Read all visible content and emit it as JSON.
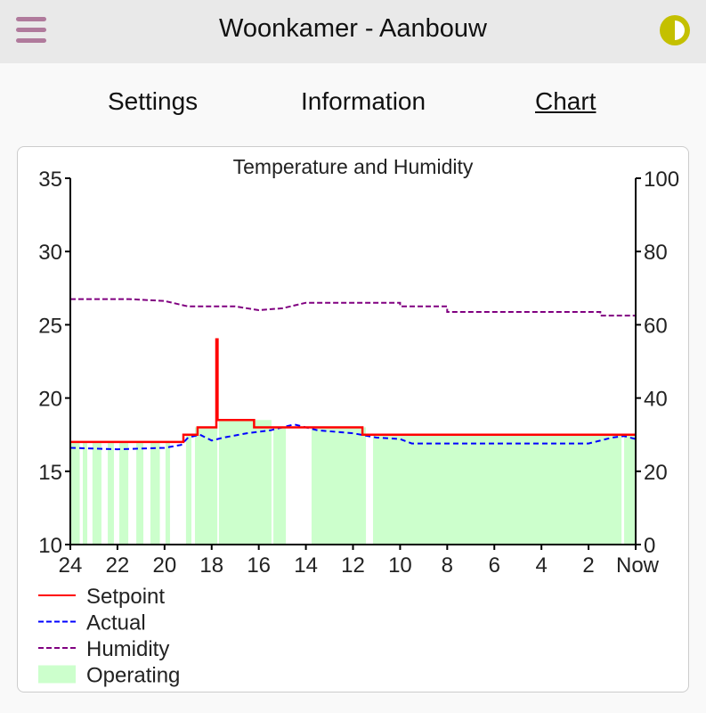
{
  "header": {
    "title": "Woonkamer - Aanbouw",
    "menu_icon": "hamburger-menu-icon",
    "theme_icon": "contrast-half-circle-icon",
    "menu_color": "#b07a9c",
    "theme_color": "#c4c000"
  },
  "tabs": [
    {
      "label": "Settings"
    },
    {
      "label": "Information"
    },
    {
      "label": "Chart",
      "active": true
    }
  ],
  "chart_data": {
    "type": "line",
    "title": "Temperature and Humidity",
    "x_unit": "hours ago",
    "x_ticks": [
      "24",
      "22",
      "20",
      "18",
      "16",
      "14",
      "12",
      "10",
      "8",
      "6",
      "4",
      "2",
      "Now"
    ],
    "x_tick_values": [
      24,
      22,
      20,
      18,
      16,
      14,
      12,
      10,
      8,
      6,
      4,
      2,
      0
    ],
    "xlim": [
      24,
      0
    ],
    "ylim_left": [
      10,
      35
    ],
    "y_ticks_left": [
      "10",
      "15",
      "20",
      "25",
      "30",
      "35"
    ],
    "ylim_right": [
      0,
      100
    ],
    "y_ticks_right": [
      "0",
      "20",
      "40",
      "60",
      "80",
      "100"
    ],
    "grid": false,
    "legend_placement": "bottom-left",
    "colors": {
      "Setpoint": "#ff0000",
      "Actual": "#0000ff",
      "Humidity": "#800080",
      "Operating": "#ccffcc"
    },
    "legend": [
      "Setpoint",
      "Actual",
      "Humidity",
      "Operating"
    ],
    "series": [
      {
        "name": "Setpoint",
        "axis": "left",
        "style": "solid",
        "points": [
          [
            24,
            17
          ],
          [
            19.2,
            17
          ],
          [
            19.2,
            17.5
          ],
          [
            18.6,
            17.5
          ],
          [
            18.6,
            18
          ],
          [
            17.8,
            18
          ],
          [
            17.8,
            24
          ],
          [
            17.75,
            24
          ],
          [
            17.75,
            18.5
          ],
          [
            16.2,
            18.5
          ],
          [
            16.2,
            18
          ],
          [
            11.6,
            18
          ],
          [
            11.6,
            17.5
          ],
          [
            0,
            17.5
          ]
        ]
      },
      {
        "name": "Actual",
        "axis": "left",
        "style": "dashed",
        "points": [
          [
            24,
            16.6
          ],
          [
            22,
            16.5
          ],
          [
            20,
            16.6
          ],
          [
            19.3,
            16.8
          ],
          [
            19,
            17.3
          ],
          [
            18.5,
            17.5
          ],
          [
            18,
            17.1
          ],
          [
            17.5,
            17.3
          ],
          [
            16.5,
            17.6
          ],
          [
            15.5,
            17.8
          ],
          [
            14.5,
            18.2
          ],
          [
            13.5,
            17.8
          ],
          [
            12,
            17.6
          ],
          [
            11,
            17.3
          ],
          [
            10,
            17.2
          ],
          [
            9.5,
            16.9
          ],
          [
            2,
            16.9
          ],
          [
            1,
            17.3
          ],
          [
            0.5,
            17.4
          ],
          [
            0,
            17.2
          ]
        ]
      },
      {
        "name": "Humidity",
        "axis": "right",
        "style": "dashed",
        "points": [
          [
            24,
            67
          ],
          [
            21.5,
            67
          ],
          [
            20,
            66.5
          ],
          [
            19,
            65
          ],
          [
            17,
            65
          ],
          [
            16,
            64
          ],
          [
            15,
            64.5
          ],
          [
            14,
            66
          ],
          [
            10,
            66
          ],
          [
            10,
            65
          ],
          [
            8,
            65
          ],
          [
            8,
            63.5
          ],
          [
            1.5,
            63.5
          ],
          [
            1.5,
            62.5
          ],
          [
            0,
            62.5
          ]
        ]
      },
      {
        "name": "Operating",
        "axis": "left",
        "style": "area",
        "intervals": [
          [
            23.96,
            23.6
          ],
          [
            23.47,
            23.28
          ],
          [
            23.06,
            22.68
          ],
          [
            22.41,
            22.15
          ],
          [
            21.92,
            21.54
          ],
          [
            21.2,
            20.9
          ],
          [
            20.6,
            20.2
          ],
          [
            19.96,
            19.77
          ],
          [
            19.09,
            18.86
          ],
          [
            18.71,
            17.76
          ],
          [
            17.69,
            15.46
          ],
          [
            15.38,
            14.85
          ],
          [
            13.76,
            11.45
          ],
          [
            11.15,
            0.6
          ],
          [
            0.49,
            0
          ]
        ]
      }
    ]
  }
}
